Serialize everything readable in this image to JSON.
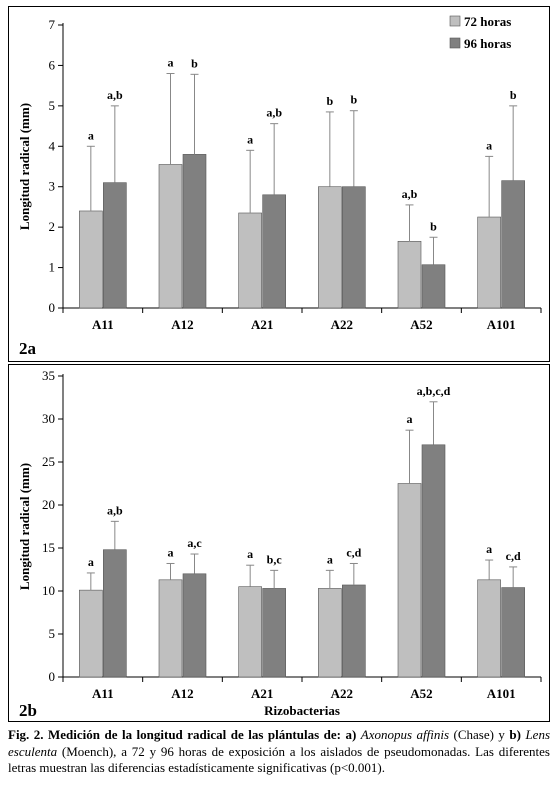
{
  "legend": {
    "series1": "72 horas",
    "series2": "96 horas"
  },
  "colors": {
    "series1": "#bfbfbf",
    "series2": "#808080",
    "border": "#000000"
  },
  "chart_data": [
    {
      "panel": "2a",
      "type": "bar",
      "ylabel": "Longitud radical (mm)",
      "xlabel": "",
      "ylim": [
        0,
        7
      ],
      "yticks": [
        0,
        1,
        2,
        3,
        4,
        5,
        6,
        7
      ],
      "categories": [
        "A11",
        "A12",
        "A21",
        "A22",
        "A52",
        "A101"
      ],
      "legend_position": "top-right",
      "grid": false,
      "series": [
        {
          "name": "72 horas",
          "values": [
            2.4,
            3.55,
            2.35,
            3.0,
            1.65,
            2.25
          ],
          "err": [
            1.6,
            2.25,
            1.55,
            1.85,
            0.9,
            1.5
          ],
          "labels": [
            "a",
            "a",
            "a",
            "b",
            "a,b",
            "a"
          ]
        },
        {
          "name": "96 horas",
          "values": [
            3.1,
            3.8,
            2.8,
            3.0,
            1.07,
            3.15
          ],
          "err": [
            1.9,
            1.98,
            1.76,
            1.88,
            0.68,
            1.85
          ],
          "labels": [
            "a,b",
            "b",
            "a,b",
            "b",
            "b",
            "b"
          ]
        }
      ]
    },
    {
      "panel": "2b",
      "type": "bar",
      "ylabel": "Longitud radical (mm)",
      "xlabel": "Rizobacterias",
      "ylim": [
        0,
        35
      ],
      "yticks": [
        0,
        5,
        10,
        15,
        20,
        25,
        30,
        35
      ],
      "categories": [
        "A11",
        "A12",
        "A21",
        "A22",
        "A52",
        "A101"
      ],
      "legend_position": "none",
      "grid": false,
      "series": [
        {
          "name": "72 horas",
          "values": [
            10.1,
            11.3,
            10.5,
            10.3,
            22.5,
            11.3
          ],
          "err": [
            2.0,
            1.9,
            2.5,
            2.1,
            6.2,
            2.3
          ],
          "labels": [
            "a",
            "a",
            "a",
            "a",
            "a",
            "a"
          ]
        },
        {
          "name": "96 horas",
          "values": [
            14.8,
            12.0,
            10.3,
            10.7,
            27.0,
            10.4
          ],
          "err": [
            3.3,
            2.3,
            2.1,
            2.5,
            5.0,
            2.4
          ],
          "labels": [
            "a,b",
            "a,c",
            "b,c",
            "c,d",
            "a,b,c,d",
            "c,d"
          ]
        }
      ]
    }
  ],
  "caption": {
    "fig": "Fig. 2.",
    "bold_text": " Medición de la longitud radical de las plántulas de: ",
    "part_a": "a)",
    "species_a": "Axonopus affinis",
    "author_a": " (Chase) y ",
    "part_b": "b)",
    "species_b": "Lens esculenta",
    "rest": " (Moench), a 72 y 96 horas de exposición a los aislados de pseudomonadas. Las diferentes letras muestran las diferencias estadísticamente significativas (p<0.001)."
  }
}
